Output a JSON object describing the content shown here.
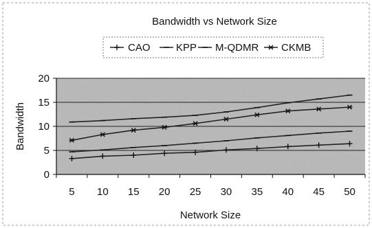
{
  "chart_data": {
    "type": "line",
    "title": "Bandwidth vs Network Size",
    "xlabel": "Network Size",
    "ylabel": "Bandwidth",
    "x": [
      5,
      10,
      15,
      20,
      25,
      30,
      35,
      40,
      45,
      50
    ],
    "ylim": [
      0,
      20
    ],
    "yticks": [
      0,
      5,
      10,
      15,
      20
    ],
    "grid": true,
    "legend_position": "top",
    "series": [
      {
        "name": "CAO",
        "marker": "plus",
        "values": [
          3.3,
          3.8,
          4.0,
          4.4,
          4.6,
          5.1,
          5.4,
          5.8,
          6.1,
          6.4
        ]
      },
      {
        "name": "KPP",
        "marker": "dash",
        "values": [
          4.7,
          5.1,
          5.6,
          6.0,
          6.5,
          7.0,
          7.6,
          8.1,
          8.6,
          9.0
        ]
      },
      {
        "name": "M-QDMR",
        "marker": "dash",
        "values": [
          10.9,
          11.2,
          11.6,
          11.9,
          12.3,
          13.0,
          13.9,
          14.9,
          15.7,
          16.5
        ]
      },
      {
        "name": "CKMB",
        "marker": "star",
        "values": [
          7.1,
          8.3,
          9.2,
          9.8,
          10.6,
          11.5,
          12.4,
          13.2,
          13.6,
          14.0
        ]
      }
    ],
    "colors": {
      "plot_background": "#b8b8b8",
      "line": "#222222",
      "gridline": "#222222"
    }
  }
}
